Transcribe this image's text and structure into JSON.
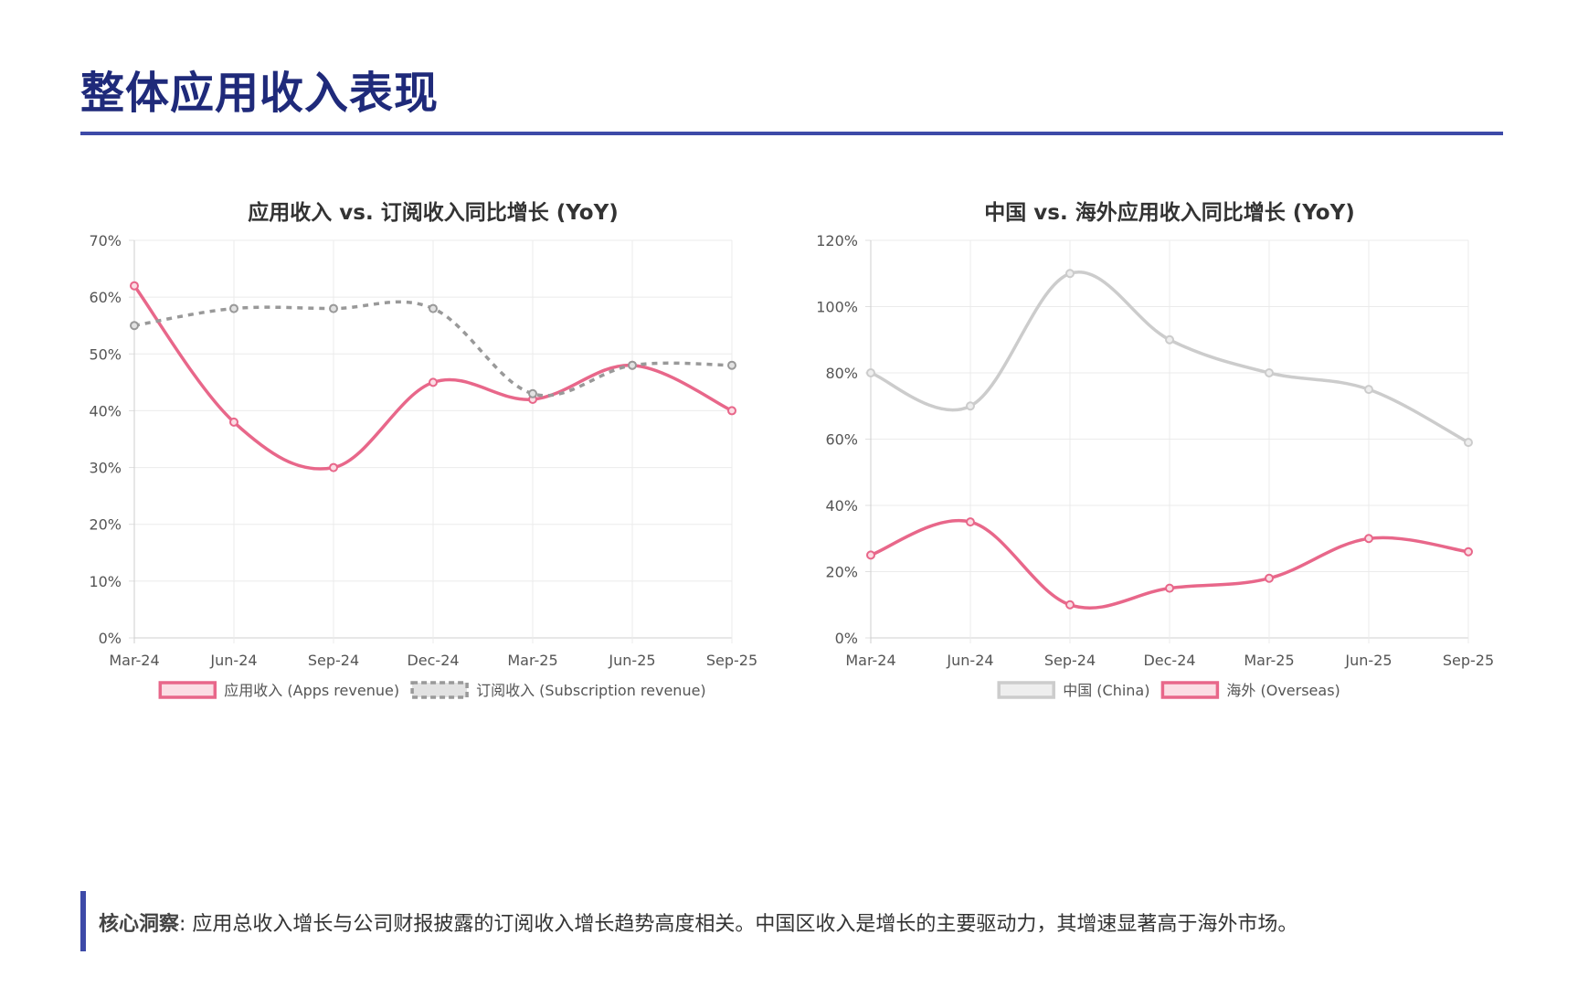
{
  "page": {
    "title": "整体应用收入表现",
    "accent_color": "#3d4aa8",
    "title_color": "#1f2a7a"
  },
  "insight": {
    "label": "核心洞察",
    "text": ": 应用总收入增长与公司财报披露的订阅收入增长趋势高度相关。中国区收入是增长的主要驱动力，其增速显著高于海外市场。"
  },
  "chart_data": [
    {
      "type": "line",
      "title": "应用收入 vs. 订阅收入同比增长 (YoY)",
      "categories": [
        "Mar-24",
        "Jun-24",
        "Sep-24",
        "Dec-24",
        "Mar-25",
        "Jun-25",
        "Sep-25"
      ],
      "ylim": [
        0,
        70
      ],
      "yticks": [
        0,
        10,
        20,
        30,
        40,
        50,
        60,
        70
      ],
      "ytick_labels": [
        "0%",
        "10%",
        "20%",
        "30%",
        "40%",
        "50%",
        "60%",
        "70%"
      ],
      "grid": true,
      "legend_position": "bottom",
      "series": [
        {
          "name": "应用收入 (Apps revenue)",
          "values": [
            62,
            38,
            30,
            45,
            42,
            48,
            40
          ],
          "color": "#e8678a",
          "fill": "#fbdde4",
          "dashed": false
        },
        {
          "name": "订阅收入 (Subscription revenue)",
          "values": [
            55,
            58,
            58,
            58,
            43,
            48,
            48
          ],
          "color": "#999999",
          "fill": "#e2e2e2",
          "dashed": true
        }
      ]
    },
    {
      "type": "line",
      "title": "中国 vs. 海外应用收入同比增长 (YoY)",
      "categories": [
        "Mar-24",
        "Jun-24",
        "Sep-24",
        "Dec-24",
        "Mar-25",
        "Jun-25",
        "Sep-25"
      ],
      "ylim": [
        0,
        120
      ],
      "yticks": [
        0,
        20,
        40,
        60,
        80,
        100,
        120
      ],
      "ytick_labels": [
        "0%",
        "20%",
        "40%",
        "60%",
        "80%",
        "100%",
        "120%"
      ],
      "grid": true,
      "legend_position": "bottom",
      "series": [
        {
          "name": "中国 (China)",
          "values": [
            80,
            70,
            110,
            90,
            80,
            75,
            59
          ],
          "color": "#cccccc",
          "fill": "#eeeeee",
          "dashed": false
        },
        {
          "name": "海外 (Overseas)",
          "values": [
            25,
            35,
            10,
            15,
            18,
            30,
            26
          ],
          "color": "#e8678a",
          "fill": "#fbdde4",
          "dashed": false
        }
      ]
    }
  ]
}
